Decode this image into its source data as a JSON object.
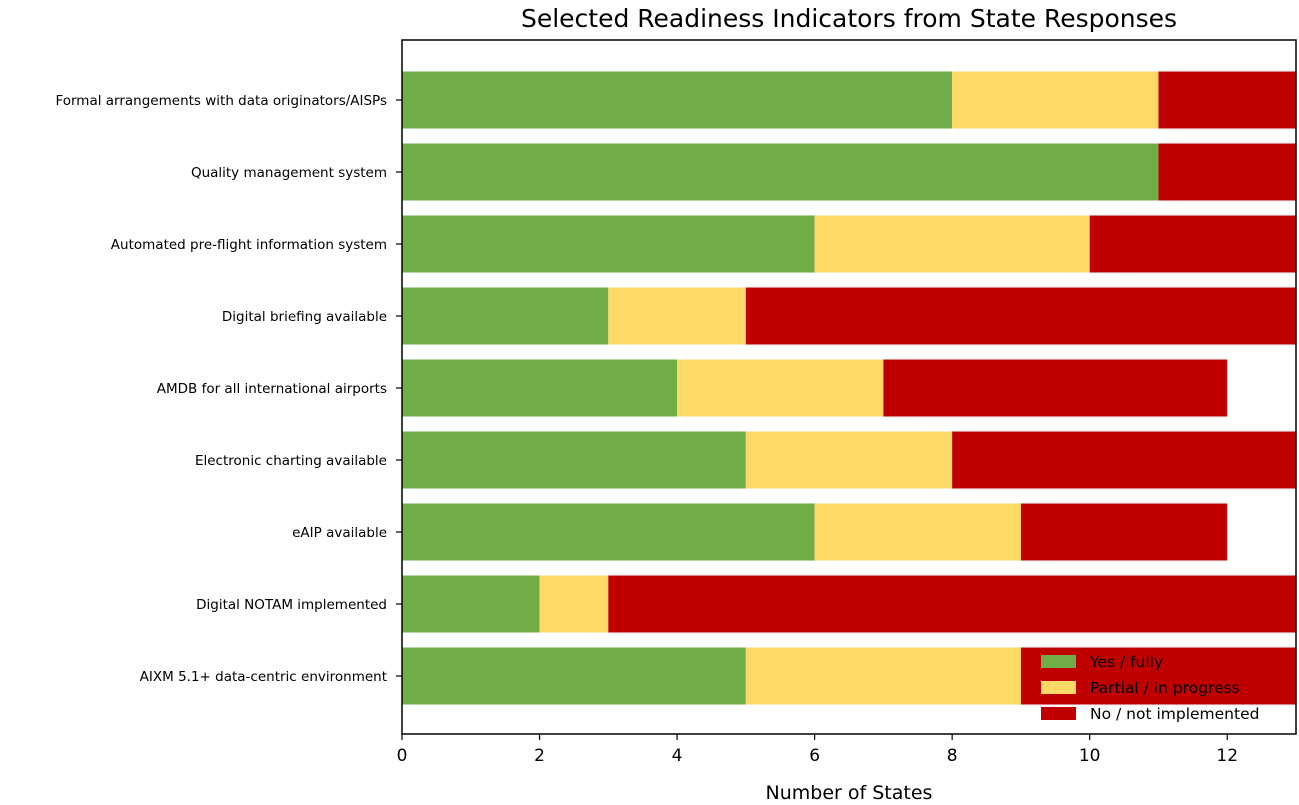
{
  "chart_data": {
    "type": "bar",
    "orientation": "horizontal",
    "stacked": true,
    "title": "Selected Readiness Indicators from State Responses",
    "xlabel": "Number of States",
    "ylabel": "",
    "xlim": [
      0,
      13
    ],
    "xticks": [
      0,
      2,
      4,
      6,
      8,
      10,
      12
    ],
    "grid": false,
    "legend_position": "bottom-right",
    "categories": [
      "Formal arrangements with data originators/AISPs",
      "Quality management system",
      "Automated pre-flight information system",
      "Digital briefing available",
      "AMDB for all international airports",
      "Electronic charting available",
      "eAIP available",
      "Digital NOTAM implemented",
      "AIXM 5.1+ data-centric environment"
    ],
    "series": [
      {
        "name": "Yes / fully",
        "color": "#70ad47",
        "values": [
          8,
          11,
          6,
          3,
          4,
          5,
          6,
          2,
          5
        ]
      },
      {
        "name": "Partial / in progress",
        "color": "#ffd966",
        "values": [
          3,
          0,
          4,
          2,
          3,
          3,
          3,
          1,
          4
        ]
      },
      {
        "name": "No / not implemented",
        "color": "#c00000",
        "values": [
          2,
          2,
          3,
          8,
          5,
          5,
          3,
          10,
          4
        ]
      }
    ]
  }
}
